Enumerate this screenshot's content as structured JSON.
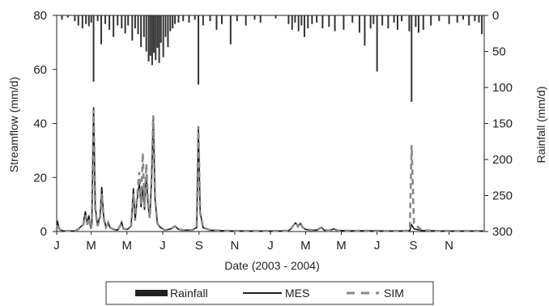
{
  "chart_data": {
    "type": "line",
    "xlabel": "Date (2003 - 2004)",
    "ylabel_left": "Streamflow (mm/d)",
    "ylabel_right": "Rainfall (mm/d)",
    "xlim": [
      "2003-01-01",
      "2004-12-31"
    ],
    "ylim_left": [
      0,
      80
    ],
    "ylim_right_inverted": [
      0,
      300
    ],
    "yticks_left": [
      0,
      20,
      40,
      60,
      80
    ],
    "yticks_right": [
      0,
      50,
      100,
      150,
      200,
      250,
      300
    ],
    "x_tick_labels": [
      {
        "label": "J",
        "date": "2003-01-01"
      },
      {
        "label": "M",
        "date": "2003-03-01"
      },
      {
        "label": "M",
        "date": "2003-05-01"
      },
      {
        "label": "J",
        "date": "2003-07-01"
      },
      {
        "label": "S",
        "date": "2003-09-01"
      },
      {
        "label": "N",
        "date": "2003-11-01"
      },
      {
        "label": "J",
        "date": "2004-01-01"
      },
      {
        "label": "M",
        "date": "2004-03-01"
      },
      {
        "label": "M",
        "date": "2004-05-01"
      },
      {
        "label": "J",
        "date": "2004-07-01"
      },
      {
        "label": "S",
        "date": "2004-09-01"
      },
      {
        "label": "N",
        "date": "2004-11-01"
      }
    ],
    "legend_position": "bottom",
    "legend": [
      "Rainfall",
      "MES",
      "SIM"
    ],
    "series": [
      {
        "name": "Rainfall",
        "style": "bars-from-top",
        "points": [
          [
            "2003-01-10",
            6
          ],
          [
            "2003-01-20",
            3
          ],
          [
            "2003-02-01",
            8
          ],
          [
            "2003-02-07",
            14
          ],
          [
            "2003-02-14",
            18
          ],
          [
            "2003-02-20",
            12
          ],
          [
            "2003-02-25",
            15
          ],
          [
            "2003-03-01",
            10
          ],
          [
            "2003-03-05",
            92
          ],
          [
            "2003-03-12",
            8
          ],
          [
            "2003-03-18",
            40
          ],
          [
            "2003-03-25",
            12
          ],
          [
            "2003-04-01",
            20
          ],
          [
            "2003-04-08",
            30
          ],
          [
            "2003-04-15",
            14
          ],
          [
            "2003-04-22",
            18
          ],
          [
            "2003-04-28",
            25
          ],
          [
            "2003-05-03",
            14
          ],
          [
            "2003-05-10",
            35
          ],
          [
            "2003-05-15",
            18
          ],
          [
            "2003-05-20",
            26
          ],
          [
            "2003-05-25",
            44
          ],
          [
            "2003-05-30",
            30
          ],
          [
            "2003-06-03",
            50
          ],
          [
            "2003-06-07",
            64
          ],
          [
            "2003-06-10",
            56
          ],
          [
            "2003-06-13",
            69
          ],
          [
            "2003-06-16",
            52
          ],
          [
            "2003-06-19",
            62
          ],
          [
            "2003-06-22",
            45
          ],
          [
            "2003-06-25",
            66
          ],
          [
            "2003-06-28",
            38
          ],
          [
            "2003-07-02",
            58
          ],
          [
            "2003-07-06",
            30
          ],
          [
            "2003-07-10",
            44
          ],
          [
            "2003-07-14",
            22
          ],
          [
            "2003-07-18",
            18
          ],
          [
            "2003-07-22",
            12
          ],
          [
            "2003-07-28",
            10
          ],
          [
            "2003-08-05",
            8
          ],
          [
            "2003-08-15",
            10
          ],
          [
            "2003-08-25",
            6
          ],
          [
            "2003-08-31",
            96
          ],
          [
            "2003-09-08",
            14
          ],
          [
            "2003-09-20",
            8
          ],
          [
            "2003-10-01",
            20
          ],
          [
            "2003-10-10",
            12
          ],
          [
            "2003-10-25",
            40
          ],
          [
            "2003-11-05",
            8
          ],
          [
            "2003-11-20",
            14
          ],
          [
            "2003-12-05",
            6
          ],
          [
            "2003-12-15",
            10
          ],
          [
            "2004-01-10",
            4
          ],
          [
            "2004-02-01",
            12
          ],
          [
            "2004-02-07",
            20
          ],
          [
            "2004-02-12",
            10
          ],
          [
            "2004-02-18",
            22
          ],
          [
            "2004-02-23",
            14
          ],
          [
            "2004-02-28",
            30
          ],
          [
            "2004-03-05",
            18
          ],
          [
            "2004-03-12",
            12
          ],
          [
            "2004-03-20",
            10
          ],
          [
            "2004-03-30",
            18
          ],
          [
            "2004-04-10",
            16
          ],
          [
            "2004-04-20",
            22
          ],
          [
            "2004-05-05",
            20
          ],
          [
            "2004-05-20",
            10
          ],
          [
            "2004-06-01",
            24
          ],
          [
            "2004-06-10",
            42
          ],
          [
            "2004-06-20",
            18
          ],
          [
            "2004-06-25",
            12
          ],
          [
            "2004-07-01",
            78
          ],
          [
            "2004-07-10",
            14
          ],
          [
            "2004-07-20",
            18
          ],
          [
            "2004-07-30",
            10
          ],
          [
            "2004-08-05",
            20
          ],
          [
            "2004-08-12",
            8
          ],
          [
            "2004-08-25",
            22
          ],
          [
            "2004-08-29",
            120
          ],
          [
            "2004-09-05",
            16
          ],
          [
            "2004-09-10",
            24
          ],
          [
            "2004-09-18",
            20
          ],
          [
            "2004-10-01",
            14
          ],
          [
            "2004-10-15",
            8
          ],
          [
            "2004-11-01",
            12
          ],
          [
            "2004-11-15",
            10
          ],
          [
            "2004-11-25",
            6
          ],
          [
            "2004-12-05",
            14
          ],
          [
            "2004-12-15",
            8
          ],
          [
            "2004-12-22",
            10
          ],
          [
            "2004-12-27",
            26
          ]
        ]
      },
      {
        "name": "MES",
        "style": "solid",
        "points": [
          [
            "2003-01-01",
            0.3
          ],
          [
            "2003-01-02",
            4
          ],
          [
            "2003-01-06",
            0.8
          ],
          [
            "2003-01-12",
            0.2
          ],
          [
            "2003-02-01",
            0.2
          ],
          [
            "2003-02-08",
            1.2
          ],
          [
            "2003-02-15",
            2.5
          ],
          [
            "2003-02-19",
            7.5
          ],
          [
            "2003-02-22",
            3
          ],
          [
            "2003-02-25",
            6
          ],
          [
            "2003-02-28",
            1
          ],
          [
            "2003-03-02",
            3
          ],
          [
            "2003-03-05",
            46
          ],
          [
            "2003-03-08",
            9
          ],
          [
            "2003-03-12",
            2
          ],
          [
            "2003-03-16",
            6
          ],
          [
            "2003-03-19",
            16.5
          ],
          [
            "2003-03-22",
            6
          ],
          [
            "2003-03-26",
            1.5
          ],
          [
            "2003-03-30",
            3.5
          ],
          [
            "2003-04-02",
            1.5
          ],
          [
            "2003-04-08",
            0.8
          ],
          [
            "2003-04-15",
            0.5
          ],
          [
            "2003-04-22",
            3.5
          ],
          [
            "2003-04-25",
            1
          ],
          [
            "2003-05-02",
            0.8
          ],
          [
            "2003-05-08",
            2
          ],
          [
            "2003-05-12",
            16
          ],
          [
            "2003-05-15",
            4
          ],
          [
            "2003-05-18",
            11
          ],
          [
            "2003-05-22",
            18
          ],
          [
            "2003-05-25",
            9
          ],
          [
            "2003-05-28",
            16
          ],
          [
            "2003-05-31",
            8
          ],
          [
            "2003-06-03",
            21
          ],
          [
            "2003-06-06",
            10
          ],
          [
            "2003-06-09",
            5
          ],
          [
            "2003-06-12",
            19
          ],
          [
            "2003-06-15",
            43
          ],
          [
            "2003-06-18",
            12
          ],
          [
            "2003-06-22",
            3
          ],
          [
            "2003-06-27",
            1.5
          ],
          [
            "2003-07-05",
            0.5
          ],
          [
            "2003-07-15",
            1
          ],
          [
            "2003-07-22",
            2
          ],
          [
            "2003-07-28",
            0.8
          ],
          [
            "2003-08-05",
            0.5
          ],
          [
            "2003-08-20",
            0.5
          ],
          [
            "2003-08-28",
            1.5
          ],
          [
            "2003-08-31",
            38
          ],
          [
            "2003-09-03",
            7
          ],
          [
            "2003-09-08",
            1.5
          ],
          [
            "2003-09-20",
            0.5
          ],
          [
            "2003-10-15",
            0.3
          ],
          [
            "2003-11-15",
            0.2
          ],
          [
            "2003-12-15",
            0.2
          ],
          [
            "2004-01-15",
            0.2
          ],
          [
            "2004-02-01",
            0.3
          ],
          [
            "2004-02-05",
            1
          ],
          [
            "2004-02-10",
            2.5
          ],
          [
            "2004-02-13",
            3.2
          ],
          [
            "2004-02-17",
            1.8
          ],
          [
            "2004-02-21",
            3
          ],
          [
            "2004-02-25",
            1.5
          ],
          [
            "2004-03-01",
            0.8
          ],
          [
            "2004-03-10",
            0.5
          ],
          [
            "2004-03-20",
            0.5
          ],
          [
            "2004-03-28",
            1.5
          ],
          [
            "2004-04-02",
            0.5
          ],
          [
            "2004-04-10",
            0.3
          ],
          [
            "2004-04-18",
            1
          ],
          [
            "2004-04-25",
            0.4
          ],
          [
            "2004-05-15",
            0.3
          ],
          [
            "2004-06-15",
            0.3
          ],
          [
            "2004-07-15",
            0.2
          ],
          [
            "2004-08-15",
            0.2
          ],
          [
            "2004-08-26",
            0.4
          ],
          [
            "2004-08-29",
            2.5
          ],
          [
            "2004-09-02",
            1
          ],
          [
            "2004-09-15",
            0.4
          ],
          [
            "2004-10-15",
            0.2
          ],
          [
            "2004-12-31",
            0.2
          ]
        ]
      },
      {
        "name": "SIM",
        "style": "dashed",
        "points": [
          [
            "2003-01-01",
            0.3
          ],
          [
            "2003-01-02",
            3
          ],
          [
            "2003-01-06",
            0.8
          ],
          [
            "2003-01-12",
            0.2
          ],
          [
            "2003-02-01",
            0.2
          ],
          [
            "2003-02-08",
            1
          ],
          [
            "2003-02-15",
            2
          ],
          [
            "2003-02-19",
            6
          ],
          [
            "2003-02-22",
            2.5
          ],
          [
            "2003-02-25",
            5
          ],
          [
            "2003-02-28",
            1
          ],
          [
            "2003-03-02",
            2.5
          ],
          [
            "2003-03-05",
            45
          ],
          [
            "2003-03-08",
            8
          ],
          [
            "2003-03-12",
            2
          ],
          [
            "2003-03-16",
            5
          ],
          [
            "2003-03-19",
            14
          ],
          [
            "2003-03-22",
            5
          ],
          [
            "2003-03-26",
            1.5
          ],
          [
            "2003-03-30",
            3
          ],
          [
            "2003-04-02",
            1.5
          ],
          [
            "2003-04-08",
            0.8
          ],
          [
            "2003-04-15",
            0.5
          ],
          [
            "2003-04-22",
            3
          ],
          [
            "2003-04-25",
            1
          ],
          [
            "2003-05-02",
            0.8
          ],
          [
            "2003-05-08",
            2
          ],
          [
            "2003-05-12",
            14
          ],
          [
            "2003-05-15",
            4
          ],
          [
            "2003-05-18",
            12
          ],
          [
            "2003-05-22",
            22
          ],
          [
            "2003-05-25",
            10
          ],
          [
            "2003-05-28",
            29
          ],
          [
            "2003-05-31",
            9
          ],
          [
            "2003-06-03",
            25
          ],
          [
            "2003-06-06",
            10
          ],
          [
            "2003-06-09",
            5
          ],
          [
            "2003-06-12",
            20
          ],
          [
            "2003-06-15",
            43
          ],
          [
            "2003-06-18",
            12
          ],
          [
            "2003-06-22",
            3
          ],
          [
            "2003-06-27",
            1.5
          ],
          [
            "2003-07-05",
            0.5
          ],
          [
            "2003-07-15",
            1
          ],
          [
            "2003-07-22",
            2
          ],
          [
            "2003-07-28",
            0.8
          ],
          [
            "2003-08-05",
            0.5
          ],
          [
            "2003-08-20",
            0.5
          ],
          [
            "2003-08-28",
            1.5
          ],
          [
            "2003-08-31",
            39
          ],
          [
            "2003-09-03",
            7
          ],
          [
            "2003-09-08",
            1.5
          ],
          [
            "2003-09-20",
            0.5
          ],
          [
            "2003-10-15",
            0.3
          ],
          [
            "2003-11-15",
            0.2
          ],
          [
            "2003-12-15",
            0.2
          ],
          [
            "2004-01-15",
            0.2
          ],
          [
            "2004-02-01",
            0.3
          ],
          [
            "2004-02-05",
            1
          ],
          [
            "2004-02-10",
            2.5
          ],
          [
            "2004-02-13",
            3.5
          ],
          [
            "2004-02-17",
            1.8
          ],
          [
            "2004-02-21",
            3.3
          ],
          [
            "2004-02-25",
            1.5
          ],
          [
            "2004-03-01",
            0.8
          ],
          [
            "2004-03-10",
            0.5
          ],
          [
            "2004-03-20",
            0.5
          ],
          [
            "2004-03-28",
            1.5
          ],
          [
            "2004-04-02",
            0.5
          ],
          [
            "2004-04-10",
            0.3
          ],
          [
            "2004-04-18",
            1
          ],
          [
            "2004-04-25",
            0.4
          ],
          [
            "2004-05-15",
            0.3
          ],
          [
            "2004-06-15",
            0.3
          ],
          [
            "2004-07-15",
            0.2
          ],
          [
            "2004-08-15",
            0.2
          ],
          [
            "2004-08-26",
            0.4
          ],
          [
            "2004-08-29",
            32
          ],
          [
            "2004-09-02",
            3
          ],
          [
            "2004-09-15",
            0.5
          ],
          [
            "2004-10-15",
            0.2
          ],
          [
            "2004-12-31",
            0.2
          ]
        ]
      }
    ]
  }
}
